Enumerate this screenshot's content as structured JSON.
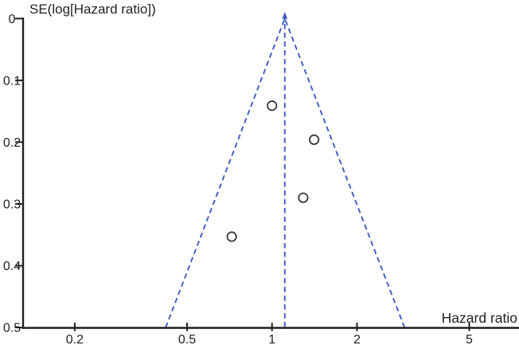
{
  "chart_data": {
    "type": "scatter",
    "subtype": "funnel-plot",
    "title": "",
    "ylabel": "SE(log[Hazard ratio])",
    "xlabel": "Hazard ratio",
    "x_scale": "log",
    "y_inverted": true,
    "grid": false,
    "legend": false,
    "x_range": [
      0.13,
      7.5
    ],
    "y_range": [
      0,
      0.5
    ],
    "x_ticks": [
      {
        "value": 0.2,
        "label": "0.2"
      },
      {
        "value": 0.5,
        "label": "0.5"
      },
      {
        "value": 1,
        "label": "1"
      },
      {
        "value": 2,
        "label": "2"
      },
      {
        "value": 5,
        "label": "5"
      }
    ],
    "y_ticks": [
      {
        "value": 0,
        "label": "0"
      },
      {
        "value": 0.1,
        "label": "0.1"
      },
      {
        "value": 0.2,
        "label": "0.2"
      },
      {
        "value": 0.3,
        "label": "0.3"
      },
      {
        "value": 0.4,
        "label": "0.4"
      },
      {
        "value": 0.5,
        "label": "0.5"
      }
    ],
    "points": [
      {
        "hazard_ratio": 1.0,
        "se": 0.141
      },
      {
        "hazard_ratio": 1.41,
        "se": 0.196
      },
      {
        "hazard_ratio": 1.29,
        "se": 0.29
      },
      {
        "hazard_ratio": 0.72,
        "se": 0.353
      }
    ],
    "center_line": {
      "hazard_ratio": 1.11,
      "style": "dashed"
    },
    "funnel_bounds": {
      "apex_hazard_ratio": 1.11,
      "apex_se": 0,
      "base_se": 0.5,
      "base_left_hazard_ratio": 0.42,
      "base_right_hazard_ratio": 2.95,
      "style": "dashed"
    },
    "colors": {
      "funnel_line": "#3a5bc2",
      "point_stroke": "#3a3a3a",
      "axis": "#231f20",
      "background": "#ffffff"
    }
  }
}
